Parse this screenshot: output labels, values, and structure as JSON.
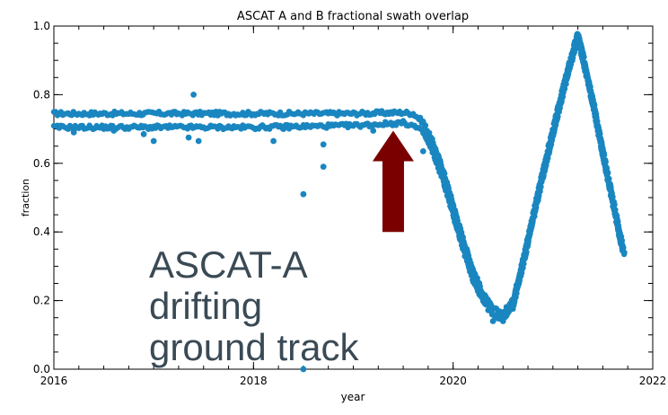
{
  "chart_data": {
    "type": "scatter",
    "title": "ASCAT A and B fractional swath overlap",
    "xlabel": "year",
    "ylabel": "fraction",
    "xlim": [
      2016,
      2022
    ],
    "ylim": [
      0.0,
      1.0
    ],
    "x_ticks": [
      "2016",
      "2018",
      "2020",
      "2022"
    ],
    "y_ticks": [
      "0.0",
      "0.2",
      "0.4",
      "0.6",
      "0.8",
      "1.0"
    ],
    "grid": false,
    "marker_color": "#1a86c0",
    "upper_track": [
      [
        2016.0,
        0.745
      ],
      [
        2017.0,
        0.745
      ],
      [
        2018.0,
        0.745
      ],
      [
        2019.0,
        0.745
      ],
      [
        2019.5,
        0.748
      ],
      [
        2019.6,
        0.745
      ],
      [
        2019.7,
        0.72
      ],
      [
        2019.8,
        0.66
      ],
      [
        2019.9,
        0.58
      ],
      [
        2020.0,
        0.48
      ],
      [
        2020.1,
        0.38
      ],
      [
        2020.2,
        0.29
      ],
      [
        2020.3,
        0.22
      ],
      [
        2020.4,
        0.175
      ],
      [
        2020.5,
        0.165
      ],
      [
        2020.6,
        0.2
      ],
      [
        2020.7,
        0.32
      ],
      [
        2020.8,
        0.45
      ],
      [
        2020.9,
        0.58
      ],
      [
        2021.0,
        0.7
      ],
      [
        2021.1,
        0.82
      ],
      [
        2021.2,
        0.93
      ],
      [
        2021.25,
        0.98
      ],
      [
        2021.3,
        0.92
      ],
      [
        2021.4,
        0.79
      ],
      [
        2021.5,
        0.64
      ],
      [
        2021.6,
        0.5
      ],
      [
        2021.7,
        0.36
      ],
      [
        2021.72,
        0.33
      ]
    ],
    "lower_track": [
      [
        2016.0,
        0.705
      ],
      [
        2017.0,
        0.705
      ],
      [
        2018.0,
        0.705
      ],
      [
        2019.0,
        0.71
      ],
      [
        2019.5,
        0.718
      ],
      [
        2019.6,
        0.71
      ],
      [
        2019.7,
        0.69
      ],
      [
        2019.8,
        0.63
      ],
      [
        2019.9,
        0.55
      ],
      [
        2020.0,
        0.45
      ],
      [
        2020.1,
        0.35
      ],
      [
        2020.2,
        0.26
      ],
      [
        2020.3,
        0.2
      ],
      [
        2020.4,
        0.155
      ],
      [
        2020.5,
        0.15
      ],
      [
        2020.6,
        0.18
      ],
      [
        2020.7,
        0.3
      ],
      [
        2020.8,
        0.43
      ],
      [
        2020.9,
        0.56
      ],
      [
        2021.0,
        0.68
      ],
      [
        2021.1,
        0.8
      ],
      [
        2021.2,
        0.91
      ],
      [
        2021.25,
        0.96
      ],
      [
        2021.3,
        0.9
      ],
      [
        2021.4,
        0.77
      ],
      [
        2021.5,
        0.62
      ],
      [
        2021.6,
        0.48
      ],
      [
        2021.7,
        0.34
      ]
    ],
    "outliers": [
      [
        2016.2,
        0.69
      ],
      [
        2016.6,
        0.695
      ],
      [
        2016.9,
        0.685
      ],
      [
        2017.0,
        0.665
      ],
      [
        2017.35,
        0.675
      ],
      [
        2017.4,
        0.8
      ],
      [
        2017.45,
        0.665
      ],
      [
        2018.2,
        0.665
      ],
      [
        2018.3,
        0.7
      ],
      [
        2018.5,
        0.51
      ],
      [
        2018.7,
        0.59
      ],
      [
        2018.7,
        0.655
      ],
      [
        2019.2,
        0.695
      ],
      [
        2019.7,
        0.635
      ],
      [
        2018.5,
        0.0
      ],
      [
        2020.4,
        0.14
      ],
      [
        2020.5,
        0.14
      ]
    ],
    "annotation_arrow": {
      "x": 2019.4,
      "y_tip": 0.695,
      "y_base": 0.4,
      "color": "#7a0000"
    }
  },
  "overlay": {
    "lines": [
      "ASCAT-A",
      "drifting",
      "ground track"
    ]
  }
}
